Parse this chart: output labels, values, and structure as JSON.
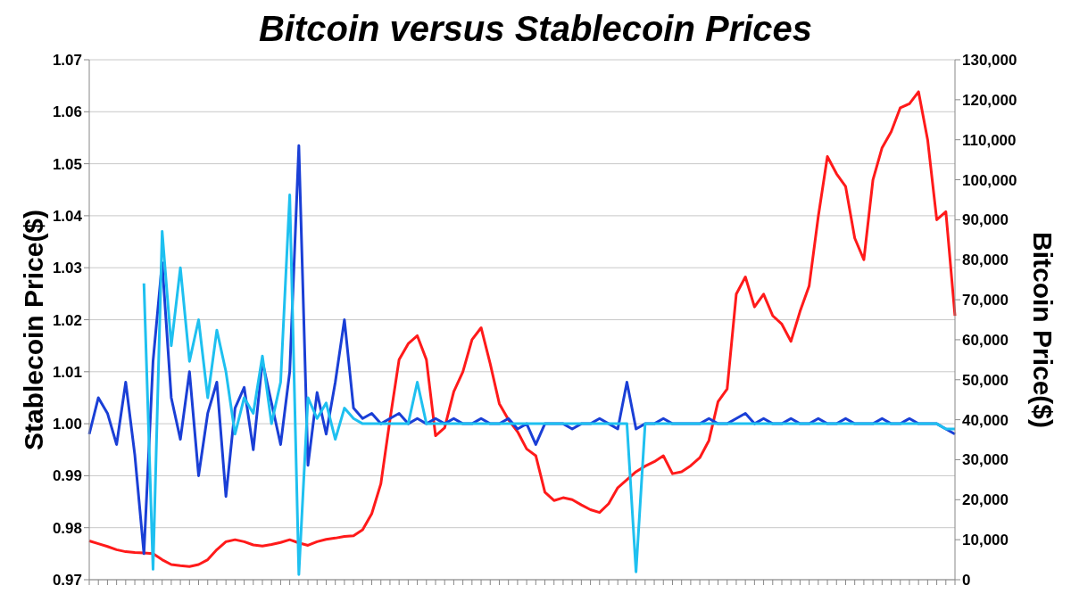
{
  "chart_data": {
    "type": "line",
    "title": "Bitcoin versus Stablecoin Prices",
    "ylabel": "Stablecoin Price($)",
    "y2label": "Bitcoin Price($)",
    "categories": [
      null,
      null,
      null,
      null,
      null,
      null,
      null,
      null,
      null,
      null,
      null,
      null,
      null,
      null,
      null,
      null,
      null,
      null,
      null,
      null,
      null,
      null,
      null,
      null,
      null,
      null,
      null,
      null,
      null,
      null,
      null,
      null,
      null,
      null,
      null,
      null,
      null,
      null,
      null,
      null,
      null,
      null,
      null,
      null,
      null,
      null,
      null,
      null,
      null,
      null,
      null,
      null,
      null,
      null,
      null,
      null,
      null,
      null,
      null,
      null,
      null,
      null,
      null,
      null,
      null,
      null,
      null,
      null,
      null,
      null,
      null,
      null,
      null,
      null,
      null,
      null,
      null,
      null,
      null,
      null,
      null,
      null,
      null,
      null,
      null,
      null,
      null,
      null,
      null,
      null,
      null,
      null,
      null,
      null,
      null,
      null
    ],
    "series": [
      {
        "color": "#ff1a1a",
        "axis": "y2",
        "values": [
          9700,
          9000,
          8300,
          7500,
          7000,
          6800,
          6700,
          6500,
          5000,
          3800,
          3500,
          3300,
          3800,
          5000,
          7500,
          9500,
          10000,
          9500,
          8700,
          8400,
          8800,
          9300,
          10000,
          9200,
          8600,
          9500,
          10100,
          10400,
          10800,
          11000,
          12500,
          16500,
          24000,
          40000,
          55000,
          59000,
          61000,
          55000,
          36000,
          38000,
          47000,
          52000,
          60000,
          63000,
          54000,
          44000,
          40000,
          37000,
          32700,
          31000,
          21900,
          19800,
          20500,
          20000,
          18700,
          17500,
          16800,
          19000,
          23000,
          25000,
          27000,
          28400,
          29500,
          31000,
          26500,
          27000,
          28500,
          30500,
          34800,
          44500,
          47700,
          71400,
          75700,
          68200,
          71400,
          66000,
          63900,
          59600,
          67100,
          73500,
          90800,
          105800,
          101500,
          98300,
          85400,
          80000,
          100000,
          108000,
          112000,
          118000,
          119000,
          122000,
          110000,
          90000,
          92000,
          66000
        ]
      },
      {
        "color": "#1a3fd6",
        "values": [
          0.998,
          1.005,
          1.002,
          0.996,
          1.008,
          0.994,
          0.975,
          1.012,
          1.031,
          1.005,
          0.997,
          1.01,
          0.99,
          1.002,
          1.008,
          0.986,
          1.003,
          1.007,
          0.995,
          1.012,
          1.004,
          0.996,
          1.01,
          1.0535,
          0.992,
          1.006,
          0.998,
          1.008,
          1.02,
          1.003,
          1.001,
          1.002,
          1.0,
          1.001,
          1.002,
          1.0,
          1.001,
          1.0,
          1.001,
          1.0,
          1.001,
          1.0,
          1.0,
          1.001,
          1.0,
          1.0,
          1.001,
          0.999,
          1.0,
          0.996,
          1.0,
          1.0,
          1.0,
          0.999,
          1.0,
          1.0,
          1.001,
          1.0,
          0.999,
          1.008,
          0.999,
          1.0,
          1.0,
          1.001,
          1.0,
          1.0,
          1.0,
          1.0,
          1.001,
          1.0,
          1.0,
          1.001,
          1.002,
          1.0,
          1.001,
          1.0,
          1.0,
          1.001,
          1.0,
          1.0,
          1.001,
          1.0,
          1.0,
          1.001,
          1.0,
          1.0,
          1.0,
          1.001,
          1.0,
          1.0,
          1.001,
          1.0,
          1.0,
          1.0,
          0.999,
          0.998
        ]
      },
      {
        "color": "#1ec0f0",
        "values": [
          null,
          null,
          null,
          null,
          null,
          null,
          1.027,
          0.972,
          1.037,
          1.015,
          1.03,
          1.012,
          1.02,
          1.005,
          1.018,
          1.01,
          0.998,
          1.005,
          1.002,
          1.013,
          1.0,
          1.008,
          1.044,
          0.971,
          1.005,
          1.001,
          1.004,
          0.997,
          1.003,
          1.001,
          1.0,
          1.0,
          1.0,
          1.0,
          1.0,
          1.0,
          1.008,
          1.0,
          1.0,
          1.0,
          1.0,
          1.0,
          1.0,
          1.0,
          1.0,
          1.0,
          1.0,
          1.0,
          1.0,
          1.0,
          1.0,
          1.0,
          1.0,
          1.0,
          1.0,
          1.0,
          1.0,
          1.0,
          1.0,
          1.0,
          0.9715,
          1.0,
          1.0,
          1.0,
          1.0,
          1.0,
          1.0,
          1.0,
          1.0,
          1.0,
          1.0,
          1.0,
          1.0,
          1.0,
          1.0,
          1.0,
          1.0,
          1.0,
          1.0,
          1.0,
          1.0,
          1.0,
          1.0,
          1.0,
          1.0,
          1.0,
          1.0,
          1.0,
          1.0,
          1.0,
          1.0,
          1.0,
          1.0,
          1.0,
          0.999,
          0.999
        ]
      }
    ],
    "ylim": [
      0.97,
      1.07
    ],
    "yticks": [
      0.97,
      0.98,
      0.99,
      {
        "value": 1.0,
        "label": "1.00"
      },
      1.01,
      1.02,
      1.03,
      1.04,
      1.05,
      1.06,
      1.07
    ],
    "y2lim": [
      0,
      130000
    ],
    "y2ticks": [
      0,
      {
        "value": 10000,
        "label": "10,000"
      },
      {
        "value": 20000,
        "label": "20,000"
      },
      {
        "value": 30000,
        "label": "30,000"
      },
      {
        "value": 40000,
        "label": "40,000"
      },
      {
        "value": 50000,
        "label": "50,000"
      },
      {
        "value": 60000,
        "label": "60,000"
      },
      {
        "value": 70000,
        "label": "70,000"
      },
      {
        "value": 80000,
        "label": "80,000"
      },
      {
        "value": 90000,
        "label": "90,000"
      },
      {
        "value": 100000,
        "label": "100,000"
      },
      {
        "value": 110000,
        "label": "110,000"
      },
      {
        "value": 120000,
        "label": "120,000"
      },
      {
        "value": 130000,
        "label": "130,000"
      }
    ],
    "grid": "y"
  }
}
